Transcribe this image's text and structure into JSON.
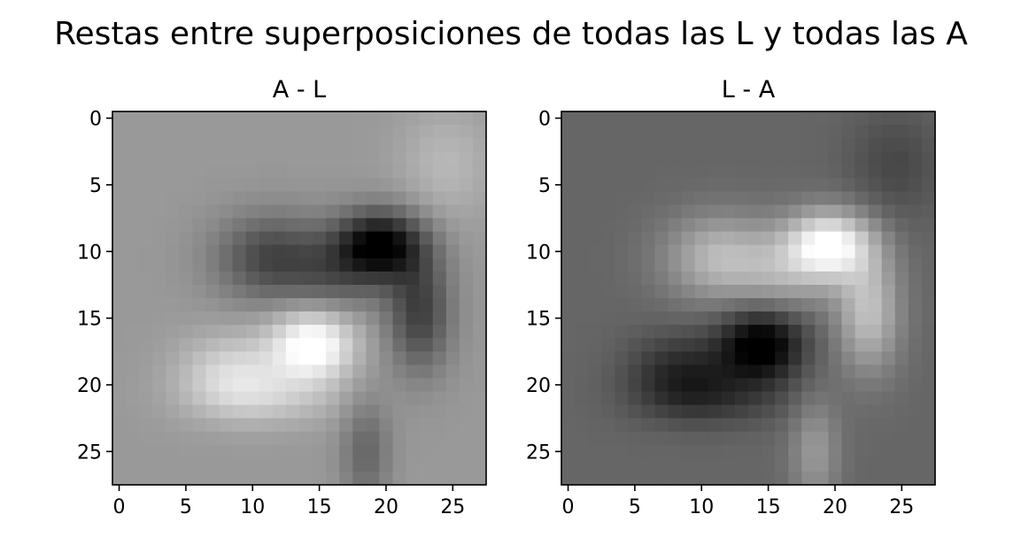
{
  "figure": {
    "suptitle": "Restas entre superposiciones de todas las L y todas las A"
  },
  "chart_data": [
    {
      "type": "heatmap",
      "title": "A - L",
      "xlabel": "",
      "ylabel": "",
      "colormap": "gray",
      "grid_size": [
        28,
        28
      ],
      "xlim": [
        -0.5,
        27.5
      ],
      "ylim": [
        27.5,
        -0.5
      ],
      "x_ticks": [
        0,
        5,
        10,
        15,
        20,
        25
      ],
      "y_ticks": [
        0,
        5,
        10,
        15,
        20,
        25
      ],
      "x_tick_labels": [
        "0",
        "5",
        "10",
        "15",
        "20",
        "25"
      ],
      "y_tick_labels": [
        "0",
        "5",
        "10",
        "15",
        "20",
        "25"
      ],
      "value_range": [
        0,
        1
      ],
      "background_level": 0.6,
      "features": [
        {
          "kind": "dark",
          "cx": 19.5,
          "cy": 9.5,
          "sx": 2.3,
          "sy": 1.8,
          "amp": 0.6
        },
        {
          "kind": "dark",
          "cx": 11.5,
          "cy": 10.5,
          "sx": 3.0,
          "sy": 2.3,
          "amp": 0.33
        },
        {
          "kind": "dark",
          "cx": 22.5,
          "cy": 14.5,
          "sx": 1.7,
          "sy": 3.2,
          "amp": 0.35
        },
        {
          "kind": "dark",
          "cx": 16.5,
          "cy": 12.0,
          "sx": 2.5,
          "sy": 2.0,
          "amp": 0.18
        },
        {
          "kind": "bright",
          "cx": 14.5,
          "cy": 17.0,
          "sx": 2.2,
          "sy": 1.9,
          "amp": 0.45
        },
        {
          "kind": "bright",
          "cx": 8.5,
          "cy": 19.0,
          "sx": 2.8,
          "sy": 2.0,
          "amp": 0.23
        },
        {
          "kind": "bright",
          "cx": 11.0,
          "cy": 21.0,
          "sx": 4.0,
          "sy": 1.5,
          "amp": 0.15
        },
        {
          "kind": "bright",
          "cx": 24.5,
          "cy": 3.5,
          "sx": 2.5,
          "sy": 3.0,
          "amp": 0.12
        },
        {
          "kind": "dark",
          "cx": 18.5,
          "cy": 25.0,
          "sx": 1.3,
          "sy": 3.0,
          "amp": 0.2
        }
      ]
    },
    {
      "type": "heatmap",
      "title": "L - A",
      "xlabel": "",
      "ylabel": "",
      "colormap": "gray",
      "grid_size": [
        28,
        28
      ],
      "xlim": [
        -0.5,
        27.5
      ],
      "ylim": [
        27.5,
        -0.5
      ],
      "x_ticks": [
        0,
        5,
        10,
        15,
        20,
        25
      ],
      "y_ticks": [
        0,
        5,
        10,
        15,
        20,
        25
      ],
      "x_tick_labels": [
        "0",
        "5",
        "10",
        "15",
        "20",
        "25"
      ],
      "y_tick_labels": [
        "0",
        "5",
        "10",
        "15",
        "20",
        "25"
      ],
      "value_range": [
        0,
        1
      ],
      "background_level": 0.4,
      "features": [
        {
          "kind": "bright",
          "cx": 19.5,
          "cy": 9.5,
          "sx": 2.3,
          "sy": 1.8,
          "amp": 0.6
        },
        {
          "kind": "bright",
          "cx": 11.5,
          "cy": 10.5,
          "sx": 3.0,
          "sy": 2.3,
          "amp": 0.33
        },
        {
          "kind": "bright",
          "cx": 22.5,
          "cy": 14.5,
          "sx": 1.7,
          "sy": 3.2,
          "amp": 0.35
        },
        {
          "kind": "bright",
          "cx": 16.5,
          "cy": 12.0,
          "sx": 2.5,
          "sy": 2.0,
          "amp": 0.18
        },
        {
          "kind": "dark",
          "cx": 14.5,
          "cy": 17.0,
          "sx": 2.2,
          "sy": 1.9,
          "amp": 0.45
        },
        {
          "kind": "dark",
          "cx": 8.5,
          "cy": 19.0,
          "sx": 2.8,
          "sy": 2.0,
          "amp": 0.23
        },
        {
          "kind": "dark",
          "cx": 11.0,
          "cy": 21.0,
          "sx": 4.0,
          "sy": 1.5,
          "amp": 0.15
        },
        {
          "kind": "dark",
          "cx": 24.5,
          "cy": 3.5,
          "sx": 2.5,
          "sy": 3.0,
          "amp": 0.12
        },
        {
          "kind": "bright",
          "cx": 18.5,
          "cy": 25.0,
          "sx": 1.3,
          "sy": 3.0,
          "amp": 0.2
        }
      ]
    }
  ]
}
